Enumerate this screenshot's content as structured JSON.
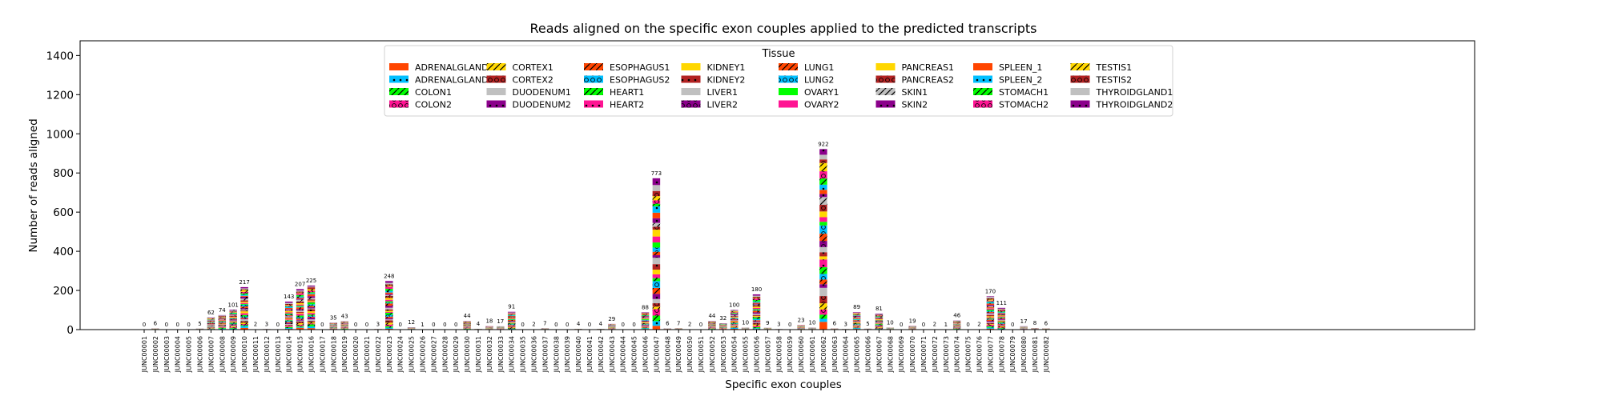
{
  "chart_data": {
    "type": "bar",
    "stacked": true,
    "title": "Reads aligned on the specific exon couples applied to the predicted transcripts",
    "xlabel": "Specific exon couples",
    "ylabel": "Number of reads aligned",
    "ylim": [
      0,
      1475
    ],
    "yticks": [
      0,
      200,
      400,
      600,
      800,
      1000,
      1200,
      1400
    ],
    "grid": false,
    "legend": {
      "title": "Tissue",
      "placement": "top-center",
      "columns": 8
    },
    "categories": [
      "JUNC00001",
      "JUNC00002",
      "JUNC00003",
      "JUNC00004",
      "JUNC00005",
      "JUNC00006",
      "JUNC00007",
      "JUNC00008",
      "JUNC00009",
      "JUNC00010",
      "JUNC00011",
      "JUNC00012",
      "JUNC00013",
      "JUNC00014",
      "JUNC00015",
      "JUNC00016",
      "JUNC00017",
      "JUNC00018",
      "JUNC00019",
      "JUNC00020",
      "JUNC00021",
      "JUNC00022",
      "JUNC00023",
      "JUNC00024",
      "JUNC00025",
      "JUNC00026",
      "JUNC00027",
      "JUNC00028",
      "JUNC00029",
      "JUNC00030",
      "JUNC00031",
      "JUNC00032",
      "JUNC00033",
      "JUNC00034",
      "JUNC00035",
      "JUNC00036",
      "JUNC00037",
      "JUNC00038",
      "JUNC00039",
      "JUNC00040",
      "JUNC00041",
      "JUNC00042",
      "JUNC00043",
      "JUNC00044",
      "JUNC00045",
      "JUNC00046",
      "JUNC00047",
      "JUNC00048",
      "JUNC00049",
      "JUNC00050",
      "JUNC00051",
      "JUNC00052",
      "JUNC00053",
      "JUNC00054",
      "JUNC00055",
      "JUNC00056",
      "JUNC00057",
      "JUNC00058",
      "JUNC00059",
      "JUNC00060",
      "JUNC00061",
      "JUNC00062",
      "JUNC00063",
      "JUNC00064",
      "JUNC00065",
      "JUNC00066",
      "JUNC00067",
      "JUNC00068",
      "JUNC00069",
      "JUNC00070",
      "JUNC00071",
      "JUNC00072",
      "JUNC00073",
      "JUNC00074",
      "JUNC00075",
      "JUNC00076",
      "JUNC00077",
      "JUNC00078",
      "JUNC00079",
      "JUNC00080",
      "JUNC00081",
      "JUNC00082"
    ],
    "totals": [
      0,
      6,
      0,
      0,
      0,
      5,
      62,
      74,
      101,
      217,
      2,
      3,
      0,
      143,
      207,
      225,
      0,
      35,
      43,
      0,
      0,
      3,
      248,
      0,
      12,
      1,
      0,
      0,
      0,
      44,
      4,
      18,
      17,
      91,
      0,
      2,
      7,
      0,
      0,
      4,
      0,
      4,
      29,
      0,
      0,
      88,
      773,
      6,
      7,
      2,
      0,
      44,
      32,
      100,
      10,
      180,
      9,
      3,
      0,
      23,
      10,
      922,
      6,
      3,
      89,
      5,
      81,
      10,
      0,
      19,
      0,
      2,
      1,
      46,
      0,
      2,
      170,
      111,
      0,
      17,
      8,
      6
    ],
    "series": [
      {
        "name": "ADRENALGLAND1",
        "color": "#ff4500",
        "pattern": "none"
      },
      {
        "name": "ADRENALGLAND2",
        "color": "#00bfff",
        "pattern": "dot"
      },
      {
        "name": "COLON1",
        "color": "#00ff00",
        "pattern": "slash"
      },
      {
        "name": "COLON2",
        "color": "#ff1493",
        "pattern": "circle"
      },
      {
        "name": "CORTEX1",
        "color": "#ffd700",
        "pattern": "slash"
      },
      {
        "name": "CORTEX2",
        "color": "#b22222",
        "pattern": "circle"
      },
      {
        "name": "DUODENUM1",
        "color": "#c0c0c0",
        "pattern": "none"
      },
      {
        "name": "DUODENUM2",
        "color": "#8b008b",
        "pattern": "dot"
      },
      {
        "name": "ESOPHAGUS1",
        "color": "#ff4500",
        "pattern": "slash"
      },
      {
        "name": "ESOPHAGUS2",
        "color": "#00bfff",
        "pattern": "circle"
      },
      {
        "name": "HEART1",
        "color": "#00ff00",
        "pattern": "slash"
      },
      {
        "name": "HEART2",
        "color": "#ff1493",
        "pattern": "dot"
      },
      {
        "name": "KIDNEY1",
        "color": "#ffd700",
        "pattern": "none"
      },
      {
        "name": "KIDNEY2",
        "color": "#b22222",
        "pattern": "dot"
      },
      {
        "name": "LIVER1",
        "color": "#c0c0c0",
        "pattern": "none"
      },
      {
        "name": "LIVER2",
        "color": "#8b008b",
        "pattern": "circle"
      },
      {
        "name": "LUNG1",
        "color": "#ff4500",
        "pattern": "slash"
      },
      {
        "name": "LUNG2",
        "color": "#00bfff",
        "pattern": "circle"
      },
      {
        "name": "OVARY1",
        "color": "#00ff00",
        "pattern": "none"
      },
      {
        "name": "OVARY2",
        "color": "#ff1493",
        "pattern": "none"
      },
      {
        "name": "PANCREAS1",
        "color": "#ffd700",
        "pattern": "none"
      },
      {
        "name": "PANCREAS2",
        "color": "#b22222",
        "pattern": "circle"
      },
      {
        "name": "SKIN1",
        "color": "#c0c0c0",
        "pattern": "slash"
      },
      {
        "name": "SKIN2",
        "color": "#8b008b",
        "pattern": "dot"
      },
      {
        "name": "SPLEEN_1",
        "color": "#ff4500",
        "pattern": "none"
      },
      {
        "name": "SPLEEN_2",
        "color": "#00bfff",
        "pattern": "dot"
      },
      {
        "name": "STOMACH1",
        "color": "#00ff00",
        "pattern": "slash"
      },
      {
        "name": "STOMACH2",
        "color": "#ff1493",
        "pattern": "circle"
      },
      {
        "name": "TESTIS1",
        "color": "#ffd700",
        "pattern": "slash"
      },
      {
        "name": "TESTIS2",
        "color": "#b22222",
        "pattern": "circle"
      },
      {
        "name": "THYROIDGLAND1",
        "color": "#c0c0c0",
        "pattern": "none"
      },
      {
        "name": "THYROIDGLAND2",
        "color": "#8b008b",
        "pattern": "dot"
      }
    ]
  }
}
